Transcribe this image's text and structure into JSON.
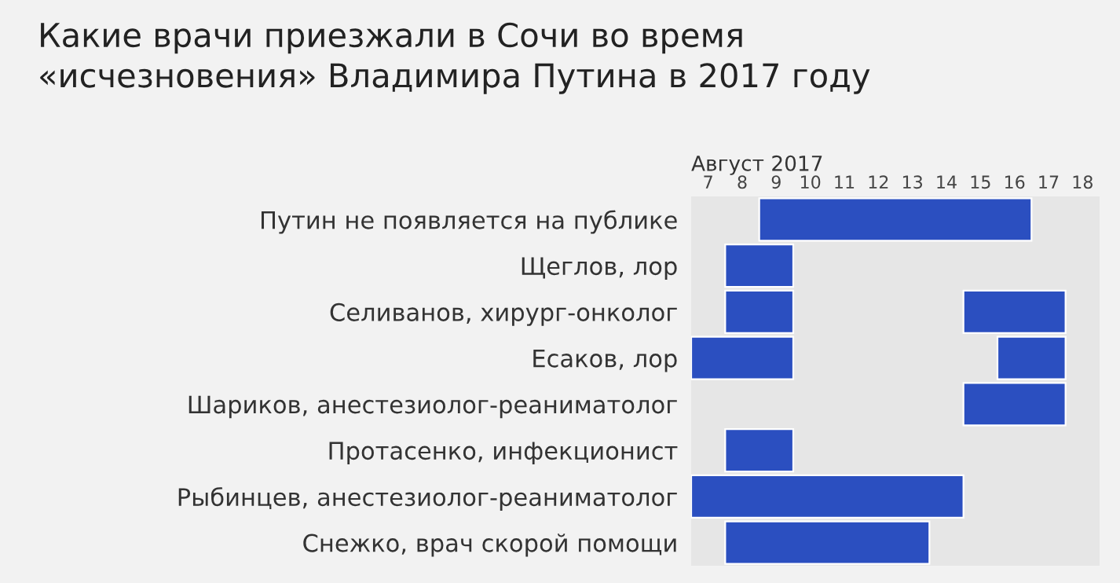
{
  "chart_data": {
    "type": "bar",
    "orientation": "horizontal",
    "title": "Какие врачи приезжали в Сочи во время\n«исчезновения» Владимира Путина в 2017 году",
    "xlabel": "Август 2017",
    "categories": [
      "Путин не появляется на публике",
      "Щеглов, лор",
      "Селиванов, хирург-онколог",
      "Есаков, лор",
      "Шариков, анестезиолог-реаниматолог",
      "Протасенко, инфекционист",
      "Рыбинцев, анестезиолог-реаниматолог",
      "Снежко, врач скорой помощи"
    ],
    "series": [
      {
        "color": "#2b4fc0",
        "base": [
          8.5,
          7.5,
          7.5,
          6.5,
          14.5,
          7.5,
          6.5,
          7.5
        ],
        "values": [
          8,
          2,
          2,
          3,
          3,
          2,
          8,
          6
        ]
      },
      {
        "color": "#2b4fc0",
        "base": [
          null,
          null,
          14.5,
          15.5,
          null,
          null,
          null,
          null
        ],
        "values": [
          null,
          null,
          3,
          2,
          null,
          null,
          null,
          null
        ]
      }
    ],
    "xlim": [
      6.5,
      18.5
    ],
    "xticks": [
      7,
      8,
      9,
      10,
      11,
      12,
      13,
      14,
      15,
      16,
      17,
      18
    ],
    "grid": false,
    "legend": false
  }
}
